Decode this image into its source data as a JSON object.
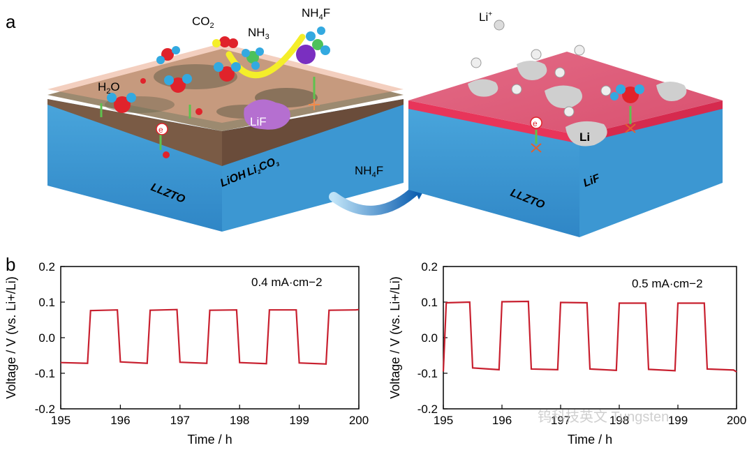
{
  "figure": {
    "panel_a_label": "a",
    "panel_b_label": "b",
    "left_schematic": {
      "molecule_labels": [
        "H2O",
        "CO2",
        "NH3",
        "NH4F"
      ],
      "layer_labels": [
        "LLZTO",
        "LiOH",
        "Li2CO3"
      ],
      "product_label": "LiF",
      "electron_label": "e"
    },
    "transition_label": "NH4F",
    "right_schematic": {
      "ion_label": "Li+",
      "layer_labels": [
        "LLZTO",
        "LiF"
      ],
      "metal_label": "Li",
      "electron_label": "e"
    }
  },
  "chart_data": [
    {
      "type": "line",
      "title": "",
      "annotation": "0.4 mA·cm−2",
      "xlabel": "Time / h",
      "ylabel": "Voltage / V (vs. Li+/Li)",
      "xlim": [
        195,
        200
      ],
      "ylim": [
        -0.2,
        0.2
      ],
      "xticks": [
        195,
        196,
        197,
        198,
        199,
        200
      ],
      "yticks": [
        -0.2,
        -0.1,
        0.0,
        0.1,
        0.2
      ],
      "series": [
        {
          "name": "0.4 mA·cm−2",
          "color": "#c8202f",
          "x": [
            195.0,
            195.45,
            195.5,
            195.95,
            196.0,
            196.45,
            196.5,
            196.95,
            197.0,
            197.45,
            197.5,
            197.95,
            198.0,
            198.45,
            198.5,
            198.95,
            199.0,
            199.45,
            199.5,
            199.95,
            200.0
          ],
          "y": [
            -0.07,
            -0.072,
            0.076,
            0.078,
            -0.068,
            -0.072,
            0.077,
            0.079,
            -0.069,
            -0.072,
            0.077,
            0.078,
            -0.07,
            -0.073,
            0.078,
            0.078,
            -0.071,
            -0.074,
            0.077,
            0.078,
            0.079
          ]
        }
      ]
    },
    {
      "type": "line",
      "title": "",
      "annotation": "0.5 mA·cm−2",
      "xlabel": "Time / h",
      "ylabel": "Voltage / V (vs. Li+/Li)",
      "xlim": [
        195,
        200
      ],
      "ylim": [
        -0.2,
        0.2
      ],
      "xticks": [
        195,
        196,
        197,
        198,
        199,
        200
      ],
      "yticks": [
        -0.2,
        -0.1,
        0.0,
        0.1,
        0.2
      ],
      "series": [
        {
          "name": "0.5 mA·cm−2",
          "color": "#c8202f",
          "x": [
            195.0,
            195.05,
            195.45,
            195.5,
            195.95,
            196.0,
            196.45,
            196.5,
            196.95,
            197.0,
            197.45,
            197.5,
            197.95,
            198.0,
            198.45,
            198.5,
            198.95,
            199.0,
            199.45,
            199.5,
            199.95,
            200.0
          ],
          "y": [
            -0.095,
            0.098,
            0.1,
            -0.085,
            -0.09,
            0.101,
            0.102,
            -0.088,
            -0.09,
            0.099,
            0.098,
            -0.088,
            -0.092,
            0.097,
            0.097,
            -0.089,
            -0.093,
            0.097,
            0.097,
            -0.088,
            -0.091,
            -0.096
          ]
        }
      ]
    }
  ],
  "watermark": "钨科技英文 Tungsten"
}
